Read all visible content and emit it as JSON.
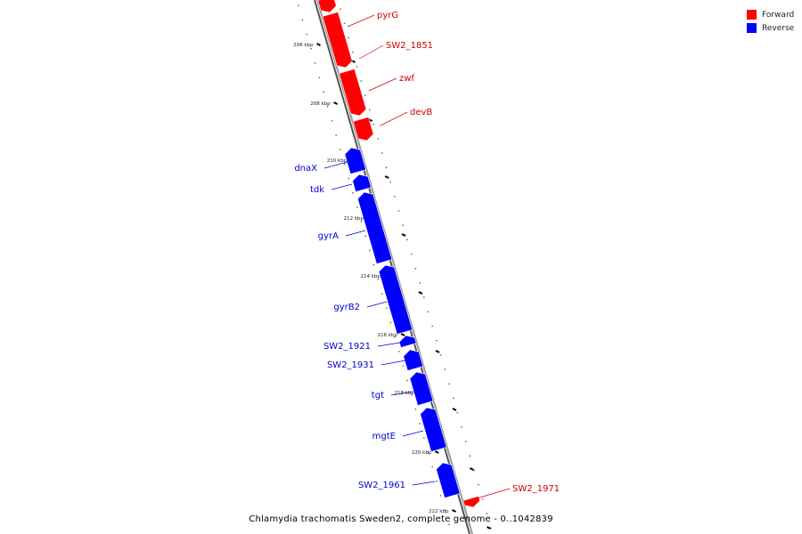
{
  "legend": {
    "forward": {
      "label": "Forward",
      "color": "#ff0000"
    },
    "reverse": {
      "label": "Reverse",
      "color": "#0000ff"
    }
  },
  "caption": "Chlamydia trachomatis Sweden2, complete genome - 0..1042839",
  "colors": {
    "backbone": "#999999",
    "tick": "#000000",
    "forward_label": "#cc0000",
    "reverse_label": "#0000cc"
  },
  "ticks": {
    "major_labels": [
      "206 kbp",
      "208 kbp",
      "210 kbp",
      "212 kbp",
      "214 kbp",
      "216 kbp",
      "218 kbp",
      "220 kbp",
      "222 kbp"
    ]
  },
  "genes": [
    {
      "name": "pyrG",
      "strand": "forward"
    },
    {
      "name": "SW2_1851",
      "strand": "forward"
    },
    {
      "name": "zwf",
      "strand": "forward"
    },
    {
      "name": "devB",
      "strand": "forward"
    },
    {
      "name": "dnaX",
      "strand": "reverse"
    },
    {
      "name": "tdk",
      "strand": "reverse"
    },
    {
      "name": "gyrA",
      "strand": "reverse"
    },
    {
      "name": "gyrB2",
      "strand": "reverse"
    },
    {
      "name": "SW2_1921",
      "strand": "reverse"
    },
    {
      "name": "SW2_1931",
      "strand": "reverse"
    },
    {
      "name": "tgt",
      "strand": "reverse"
    },
    {
      "name": "mgtE",
      "strand": "reverse"
    },
    {
      "name": "SW2_1961",
      "strand": "reverse"
    },
    {
      "name": "SW2_1971",
      "strand": "forward"
    }
  ]
}
